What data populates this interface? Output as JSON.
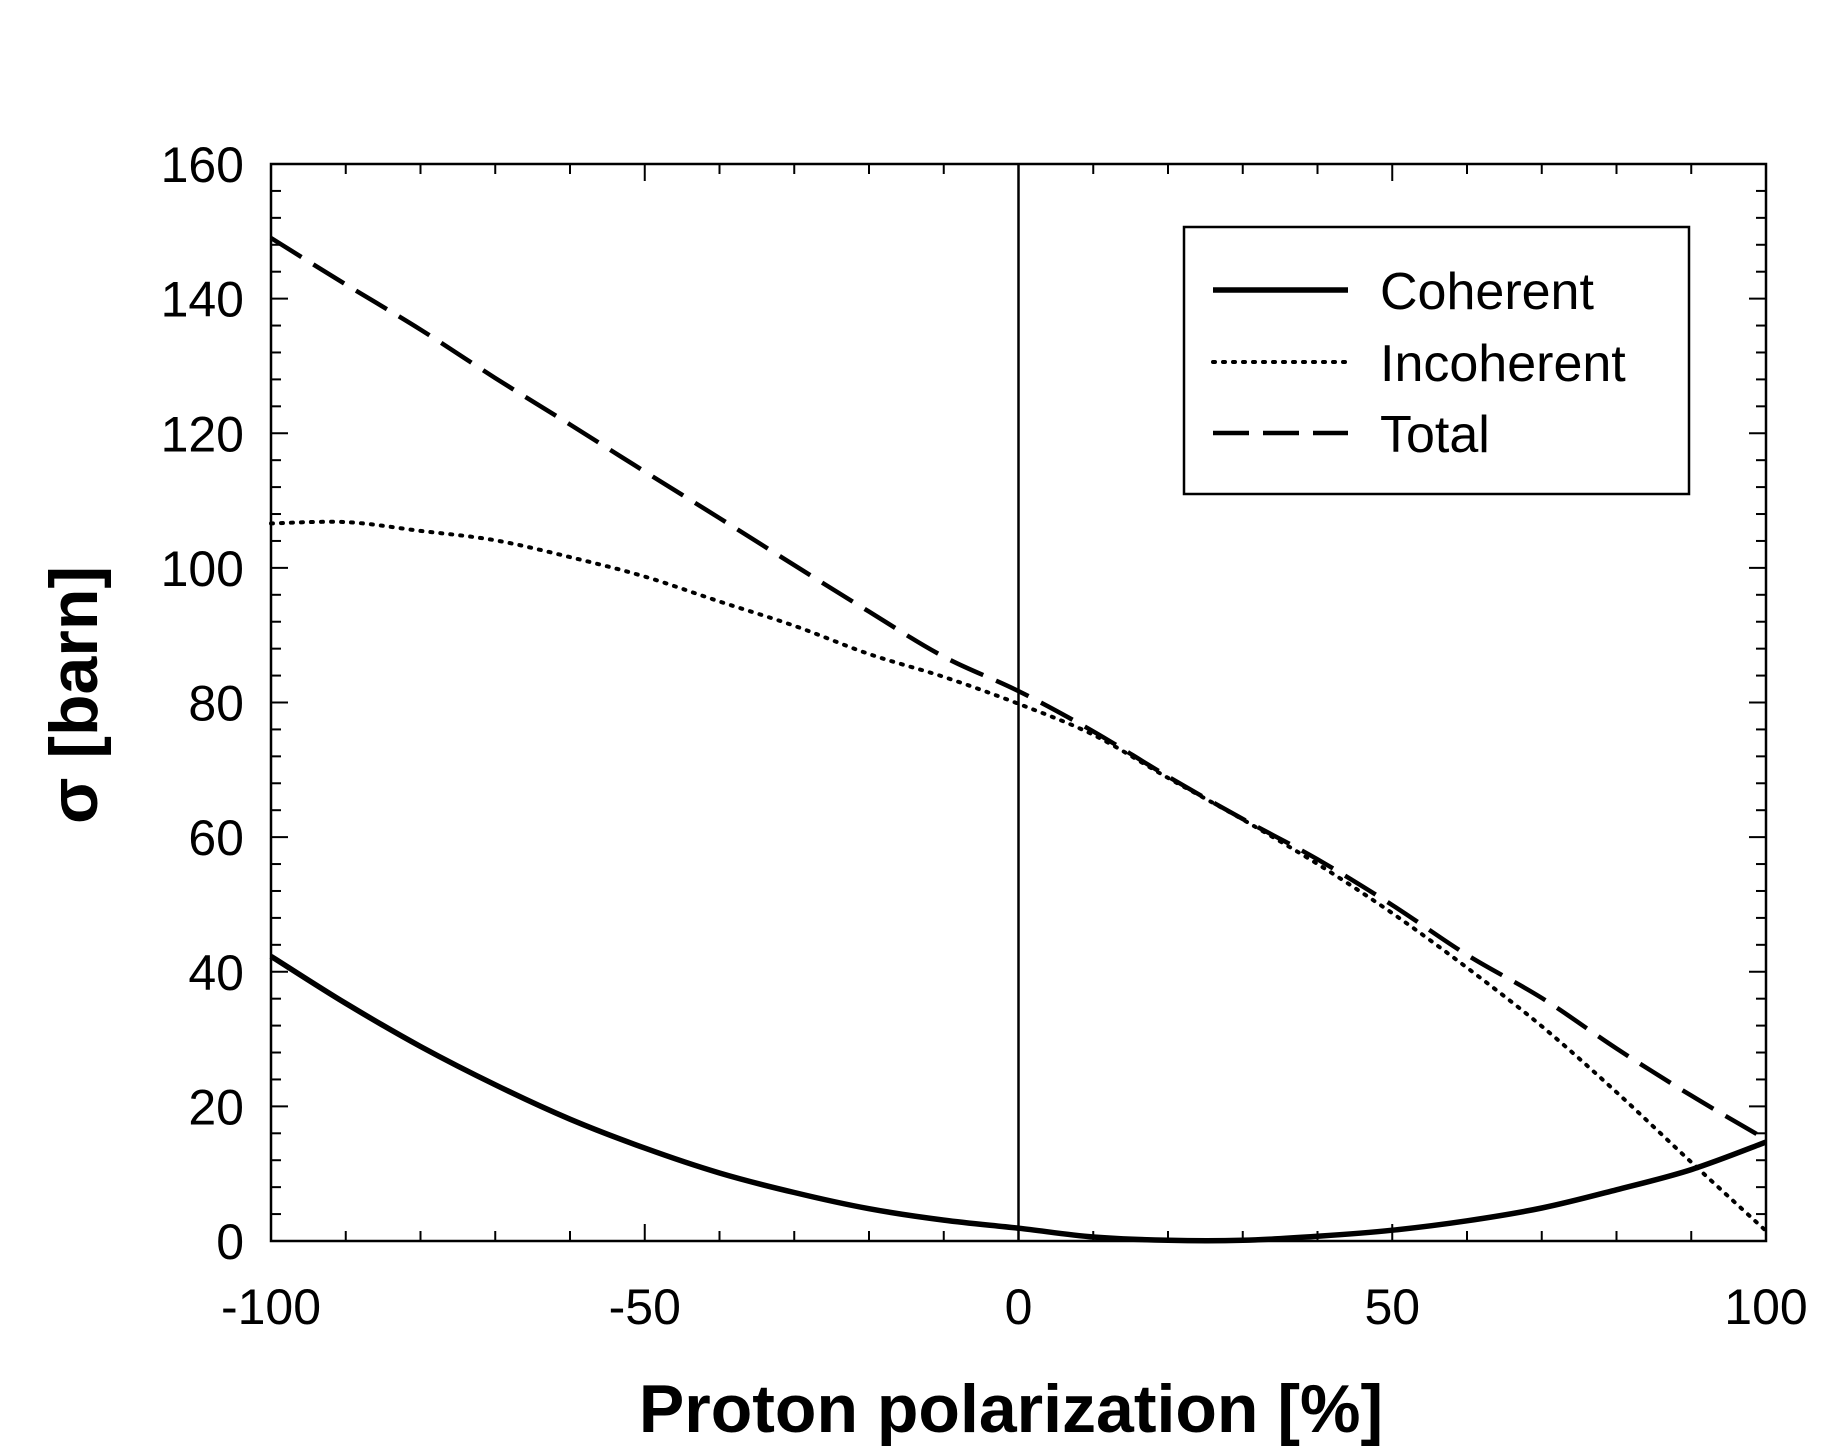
{
  "chart_data": {
    "type": "line",
    "title": "",
    "xlabel": "Proton polarization [%]",
    "ylabel": "σ [barn]",
    "xlim": [
      -100,
      100
    ],
    "ylim": [
      0,
      160
    ],
    "x_ticks": [
      -100,
      -50,
      0,
      50,
      100
    ],
    "y_ticks": [
      0,
      20,
      40,
      60,
      80,
      100,
      120,
      140,
      160
    ],
    "x_tick_labels": [
      "-100",
      "-50",
      "0",
      "50",
      "100"
    ],
    "y_tick_labels": [
      "0",
      "20",
      "40",
      "60",
      "80",
      "100",
      "120",
      "140",
      "160"
    ],
    "reference_line_x": 0,
    "grid": false,
    "legend_position": "top-right",
    "x": [
      -100,
      -90,
      -80,
      -70,
      -60,
      -50,
      -40,
      -30,
      -20,
      -10,
      0,
      10,
      20,
      30,
      40,
      50,
      60,
      70,
      80,
      90,
      100
    ],
    "series": [
      {
        "name": "Coherent",
        "style": "solid",
        "values": [
          42.3,
          35.3,
          28.9,
          23.2,
          18.1,
          13.8,
          10.1,
          7.2,
          4.8,
          3.1,
          1.9,
          0.6,
          0.1,
          0.1,
          0.7,
          1.6,
          3.0,
          4.9,
          7.6,
          10.6,
          14.7
        ]
      },
      {
        "name": "Incoherent",
        "style": "dotted",
        "values": [
          106.6,
          106.8,
          105.5,
          104.1,
          101.6,
          98.7,
          95.0,
          91.4,
          87.2,
          83.8,
          79.8,
          75.2,
          68.8,
          62.6,
          56.0,
          48.7,
          40.6,
          31.9,
          22.1,
          11.7,
          1.5
        ]
      },
      {
        "name": "Total",
        "style": "dashed",
        "values": [
          149.0,
          142.1,
          135.4,
          128.2,
          121.3,
          114.3,
          107.4,
          100.4,
          93.5,
          86.8,
          81.7,
          75.7,
          69.0,
          62.7,
          56.7,
          49.9,
          42.5,
          36.1,
          28.6,
          21.6,
          15.1
        ]
      }
    ]
  }
}
